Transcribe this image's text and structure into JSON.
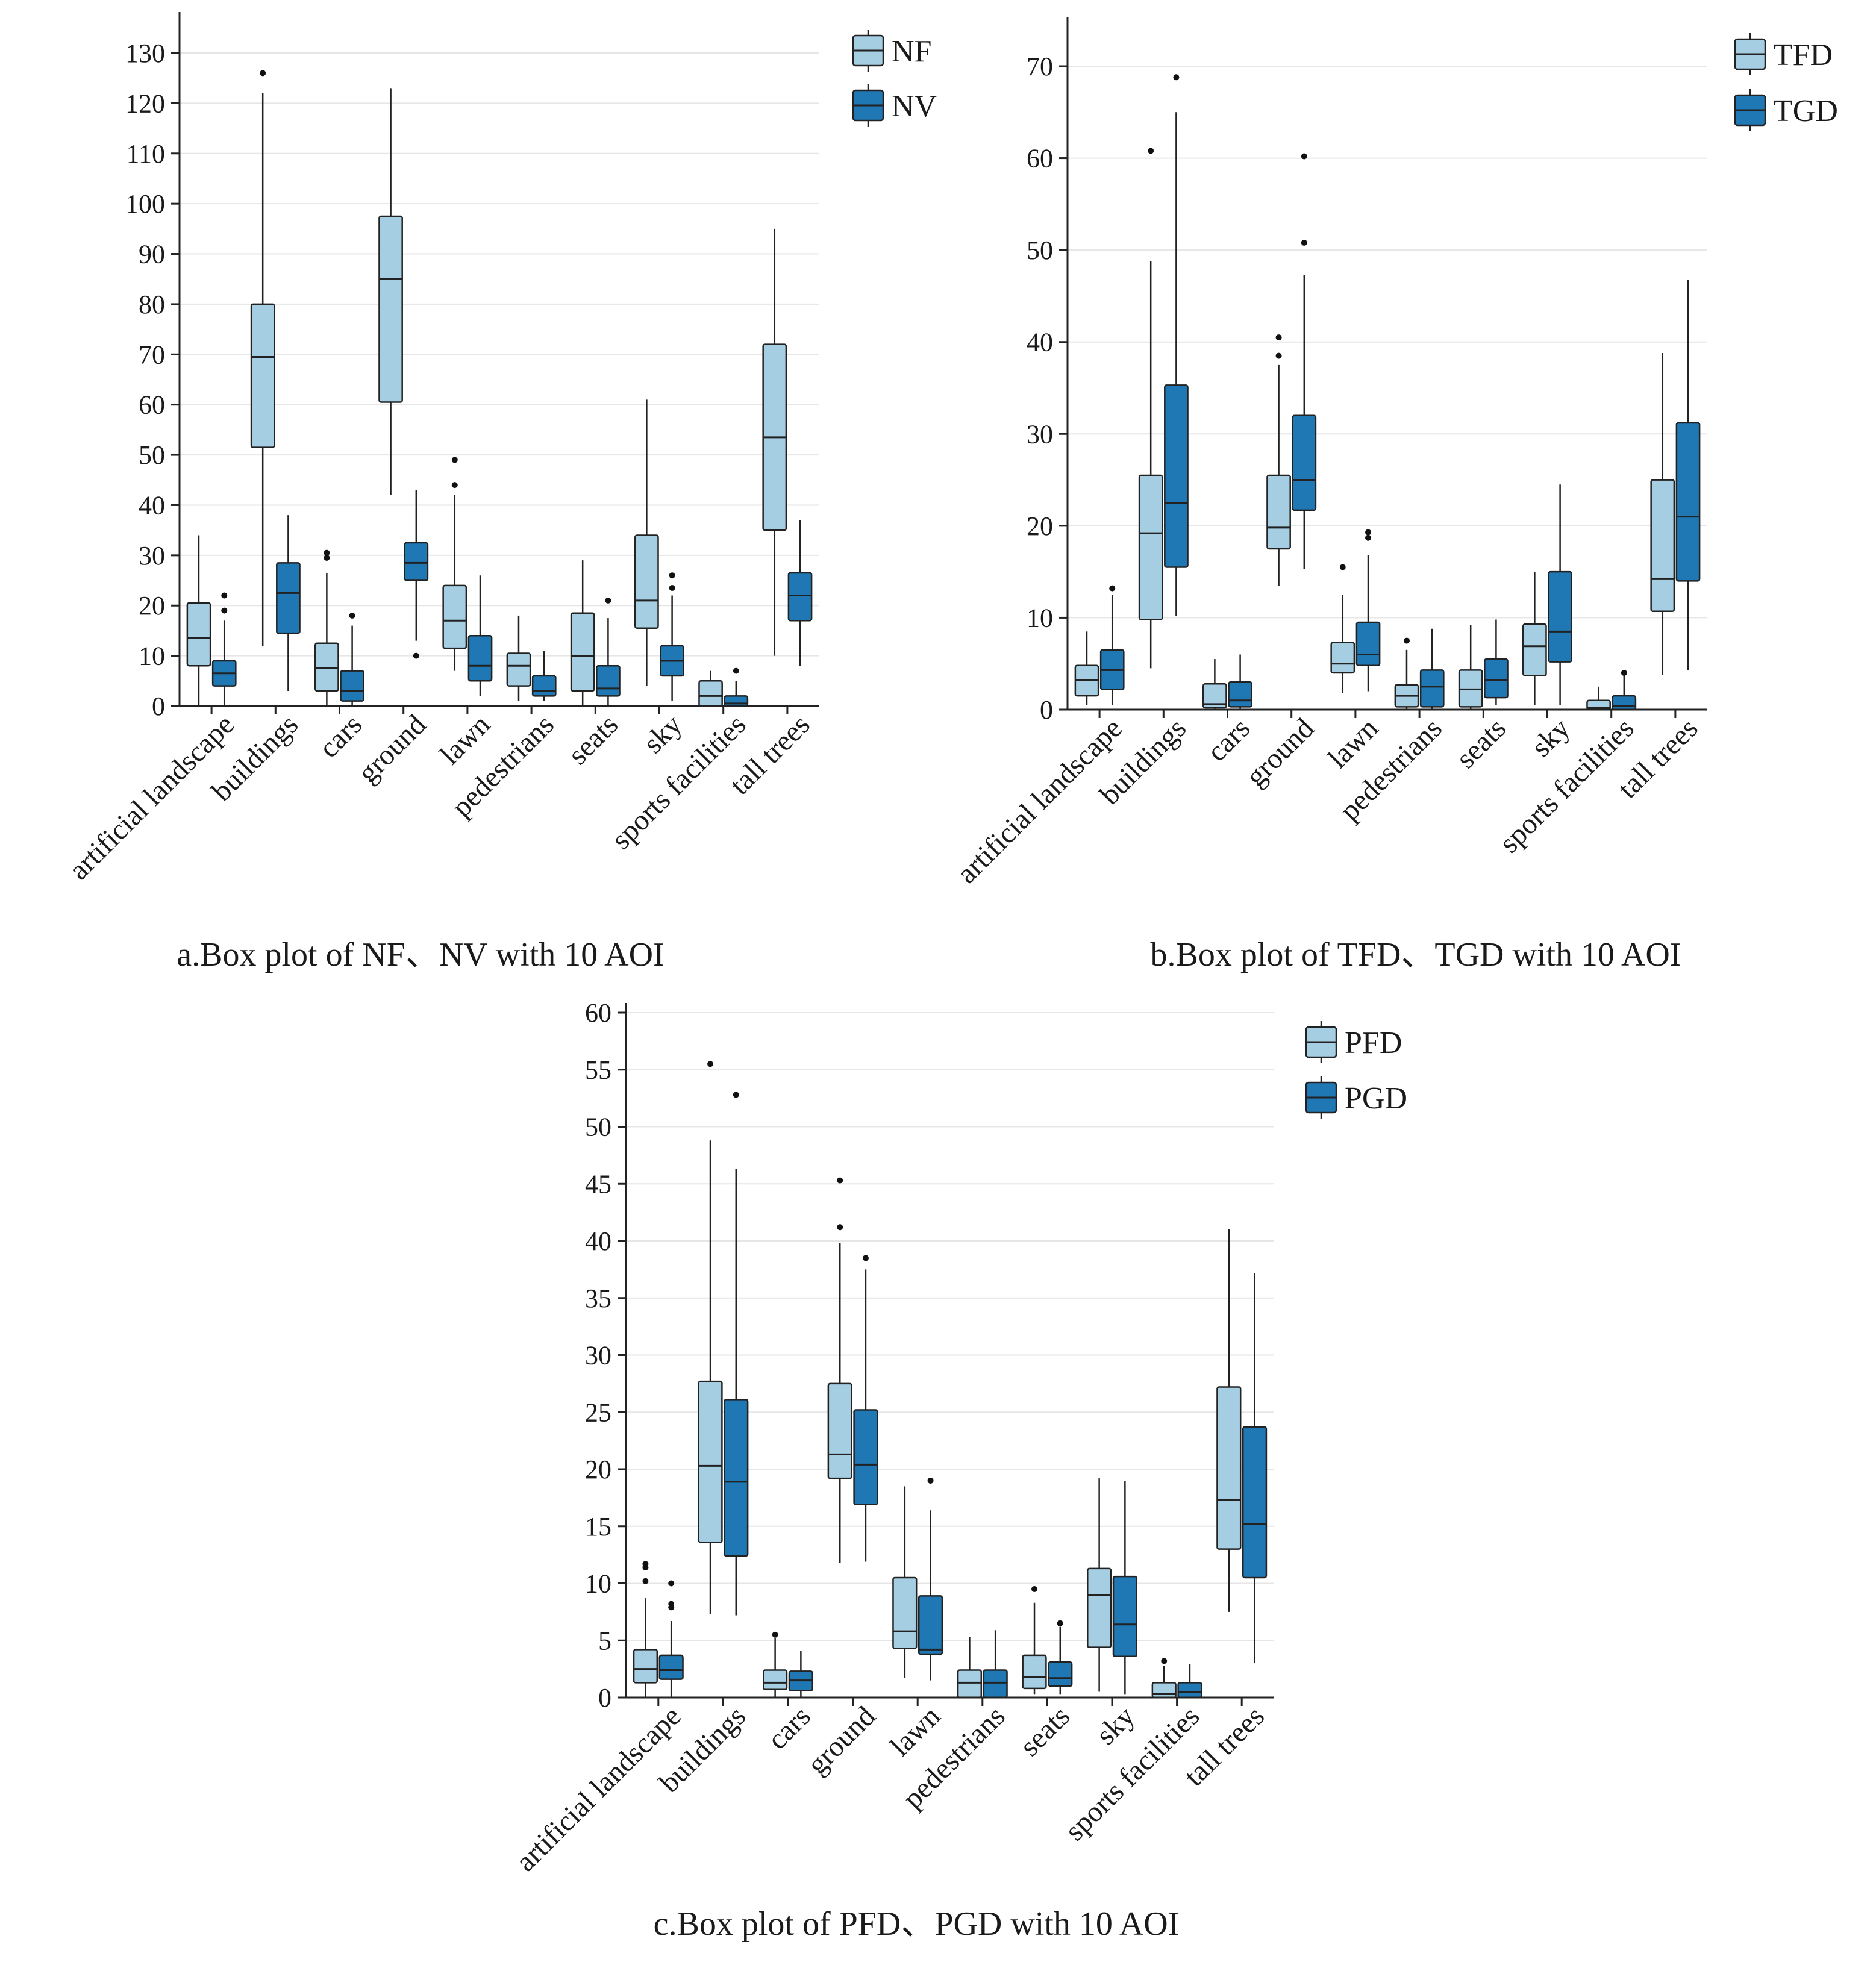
{
  "chart_data": [
    {
      "type": "box",
      "caption": "a.Box plot of NF、NV with 10 AOI",
      "categories": [
        "artificial landscape",
        "buildings",
        "cars",
        "ground",
        "lawn",
        "pedestrians",
        "seats",
        "sky",
        "sports facilities",
        "tall trees"
      ],
      "ylim": [
        0,
        140
      ],
      "yticks": [
        0,
        10,
        20,
        30,
        40,
        50,
        60,
        70,
        80,
        90,
        100,
        110,
        120,
        130
      ],
      "grid": true,
      "legend_position": "top-right",
      "series": [
        {
          "name": "NF",
          "color": "#a6cee3",
          "boxes": [
            {
              "whisker_low": 0,
              "q1": 8,
              "median": 13.5,
              "q3": 20.5,
              "whisker_high": 34,
              "outliers": []
            },
            {
              "whisker_low": 12,
              "q1": 51.5,
              "median": 69.5,
              "q3": 80,
              "whisker_high": 122,
              "outliers": [
                126
              ]
            },
            {
              "whisker_low": 0,
              "q1": 3,
              "median": 7.5,
              "q3": 12.5,
              "whisker_high": 26.5,
              "outliers": [
                29.5,
                30.5
              ]
            },
            {
              "whisker_low": 42,
              "q1": 60.5,
              "median": 85,
              "q3": 97.5,
              "whisker_high": 123,
              "outliers": []
            },
            {
              "whisker_low": 7,
              "q1": 11.5,
              "median": 17,
              "q3": 24,
              "whisker_high": 42,
              "outliers": [
                44,
                49
              ]
            },
            {
              "whisker_low": 1,
              "q1": 4,
              "median": 8,
              "q3": 10.5,
              "whisker_high": 18,
              "outliers": []
            },
            {
              "whisker_low": 0,
              "q1": 3,
              "median": 10,
              "q3": 18.5,
              "whisker_high": 29,
              "outliers": []
            },
            {
              "whisker_low": 4,
              "q1": 15.5,
              "median": 21,
              "q3": 34,
              "whisker_high": 61,
              "outliers": []
            },
            {
              "whisker_low": 0,
              "q1": 0,
              "median": 2,
              "q3": 5,
              "whisker_high": 7,
              "outliers": []
            },
            {
              "whisker_low": 10,
              "q1": 35,
              "median": 53.5,
              "q3": 72,
              "whisker_high": 95,
              "outliers": []
            }
          ]
        },
        {
          "name": "NV",
          "color": "#1f78b4",
          "boxes": [
            {
              "whisker_low": 0,
              "q1": 4,
              "median": 6.5,
              "q3": 9,
              "whisker_high": 17,
              "outliers": [
                19,
                22
              ]
            },
            {
              "whisker_low": 3,
              "q1": 14.5,
              "median": 22.5,
              "q3": 28.5,
              "whisker_high": 38,
              "outliers": []
            },
            {
              "whisker_low": 0,
              "q1": 1,
              "median": 3,
              "q3": 7,
              "whisker_high": 16,
              "outliers": [
                18
              ]
            },
            {
              "whisker_low": 13,
              "q1": 25,
              "median": 28.5,
              "q3": 32.5,
              "whisker_high": 43,
              "outliers": [
                10
              ]
            },
            {
              "whisker_low": 2,
              "q1": 5,
              "median": 8,
              "q3": 14,
              "whisker_high": 26,
              "outliers": []
            },
            {
              "whisker_low": 1,
              "q1": 2,
              "median": 3,
              "q3": 6,
              "whisker_high": 11,
              "outliers": []
            },
            {
              "whisker_low": 0,
              "q1": 2,
              "median": 3.5,
              "q3": 8,
              "whisker_high": 17.5,
              "outliers": [
                21
              ]
            },
            {
              "whisker_low": 1,
              "q1": 6,
              "median": 9,
              "q3": 12,
              "whisker_high": 22,
              "outliers": [
                23.5,
                26
              ]
            },
            {
              "whisker_low": 0,
              "q1": 0,
              "median": 0.5,
              "q3": 2,
              "whisker_high": 5,
              "outliers": [
                7
              ]
            },
            {
              "whisker_low": 8,
              "q1": 17,
              "median": 22,
              "q3": 26.5,
              "whisker_high": 37,
              "outliers": []
            }
          ]
        }
      ]
    },
    {
      "type": "box",
      "caption": "b.Box plot of TFD、TGD with 10 AOI",
      "categories": [
        "artificial landscape",
        "buildings",
        "cars",
        "ground",
        "lawn",
        "pedestrians",
        "seats",
        "sky",
        "sports facilities",
        "tall trees"
      ],
      "ylim": [
        0,
        75
      ],
      "yticks": [
        0,
        10,
        20,
        30,
        40,
        50,
        60,
        70
      ],
      "grid": true,
      "legend_position": "top-right",
      "series": [
        {
          "name": "TFD",
          "color": "#a6cee3",
          "boxes": [
            {
              "whisker_low": 0.5,
              "q1": 1.5,
              "median": 3.2,
              "q3": 4.8,
              "whisker_high": 8.5,
              "outliers": []
            },
            {
              "whisker_low": 4.5,
              "q1": 9.8,
              "median": 19.2,
              "q3": 25.5,
              "whisker_high": 48.8,
              "outliers": [
                60.8
              ]
            },
            {
              "whisker_low": 0,
              "q1": 0.2,
              "median": 0.6,
              "q3": 2.8,
              "whisker_high": 5.5,
              "outliers": []
            },
            {
              "whisker_low": 13.5,
              "q1": 17.5,
              "median": 19.8,
              "q3": 25.5,
              "whisker_high": 37.5,
              "outliers": [
                38.5,
                40.5
              ]
            },
            {
              "whisker_low": 1.8,
              "q1": 4,
              "median": 5,
              "q3": 7.3,
              "whisker_high": 12.5,
              "outliers": [
                15.5
              ]
            },
            {
              "whisker_low": 0,
              "q1": 0.3,
              "median": 1.5,
              "q3": 2.7,
              "whisker_high": 6.5,
              "outliers": [
                7.5
              ]
            },
            {
              "whisker_low": 0,
              "q1": 0.3,
              "median": 2.2,
              "q3": 4.3,
              "whisker_high": 9.2,
              "outliers": []
            },
            {
              "whisker_low": 0.5,
              "q1": 3.7,
              "median": 6.9,
              "q3": 9.3,
              "whisker_high": 15,
              "outliers": []
            },
            {
              "whisker_low": 0,
              "q1": 0,
              "median": 0.2,
              "q3": 1,
              "whisker_high": 2.5,
              "outliers": []
            },
            {
              "whisker_low": 3.8,
              "q1": 10.7,
              "median": 14.2,
              "q3": 25,
              "whisker_high": 38.8,
              "outliers": []
            }
          ]
        },
        {
          "name": "TGD",
          "color": "#1f78b4",
          "boxes": [
            {
              "whisker_low": 0.5,
              "q1": 2.2,
              "median": 4.3,
              "q3": 6.5,
              "whisker_high": 12.5,
              "outliers": [
                13.2
              ]
            },
            {
              "whisker_low": 10.2,
              "q1": 15.5,
              "median": 22.5,
              "q3": 35.3,
              "whisker_high": 65,
              "outliers": [
                68.8
              ]
            },
            {
              "whisker_low": 0,
              "q1": 0.3,
              "median": 1,
              "q3": 3,
              "whisker_high": 6,
              "outliers": []
            },
            {
              "whisker_low": 15.3,
              "q1": 21.7,
              "median": 25,
              "q3": 32,
              "whisker_high": 47.3,
              "outliers": [
                50.8,
                60.2
              ]
            },
            {
              "whisker_low": 2,
              "q1": 4.8,
              "median": 6,
              "q3": 9.5,
              "whisker_high": 16.8,
              "outliers": [
                18.7,
                19.3
              ]
            },
            {
              "whisker_low": 0,
              "q1": 0.3,
              "median": 2.5,
              "q3": 4.3,
              "whisker_high": 8.8,
              "outliers": []
            },
            {
              "whisker_low": 0.5,
              "q1": 1.3,
              "median": 3.2,
              "q3": 5.5,
              "whisker_high": 9.8,
              "outliers": []
            },
            {
              "whisker_low": 0.5,
              "q1": 5.2,
              "median": 8.5,
              "q3": 15,
              "whisker_high": 24.5,
              "outliers": []
            },
            {
              "whisker_low": 0,
              "q1": 0,
              "median": 0.4,
              "q3": 1.5,
              "whisker_high": 3.8,
              "outliers": [
                4
              ]
            },
            {
              "whisker_low": 4.3,
              "q1": 14,
              "median": 21,
              "q3": 31.2,
              "whisker_high": 46.8,
              "outliers": []
            }
          ]
        }
      ]
    },
    {
      "type": "box",
      "caption": "c.Box plot of PFD、PGD with 10 AOI",
      "categories": [
        "artificial landscape",
        "buildings",
        "cars",
        "ground",
        "lawn",
        "pedestrians",
        "seats",
        "sky",
        "sports facilities",
        "tall trees"
      ],
      "ylim": [
        0,
        60
      ],
      "yticks": [
        0,
        5,
        10,
        15,
        20,
        25,
        30,
        35,
        40,
        45,
        50,
        55,
        60
      ],
      "grid": true,
      "legend_position": "top-right",
      "series": [
        {
          "name": "PFD",
          "color": "#a6cee3",
          "boxes": [
            {
              "whisker_low": 0,
              "q1": 1.3,
              "median": 2.5,
              "q3": 4.2,
              "whisker_high": 8.7,
              "outliers": [
                10.2,
                11.4,
                11.7
              ]
            },
            {
              "whisker_low": 7.3,
              "q1": 13.6,
              "median": 20.3,
              "q3": 27.7,
              "whisker_high": 48.8,
              "outliers": [
                55.5
              ]
            },
            {
              "whisker_low": 0,
              "q1": 0.7,
              "median": 1.3,
              "q3": 2.4,
              "whisker_high": 5.2,
              "outliers": [
                5.5
              ]
            },
            {
              "whisker_low": 11.8,
              "q1": 19.2,
              "median": 21.3,
              "q3": 27.5,
              "whisker_high": 39.8,
              "outliers": [
                41.2,
                45.3
              ]
            },
            {
              "whisker_low": 1.7,
              "q1": 4.3,
              "median": 5.8,
              "q3": 10.5,
              "whisker_high": 18.5,
              "outliers": []
            },
            {
              "whisker_low": 0,
              "q1": 0,
              "median": 1.3,
              "q3": 2.4,
              "whisker_high": 5.3,
              "outliers": []
            },
            {
              "whisker_low": 0.3,
              "q1": 0.8,
              "median": 1.8,
              "q3": 3.7,
              "whisker_high": 8.3,
              "outliers": [
                9.5
              ]
            },
            {
              "whisker_low": 0.5,
              "q1": 4.4,
              "median": 9,
              "q3": 11.3,
              "whisker_high": 19.2,
              "outliers": []
            },
            {
              "whisker_low": 0,
              "q1": 0,
              "median": 0.3,
              "q3": 1.3,
              "whisker_high": 2.8,
              "outliers": [
                3.2
              ]
            },
            {
              "whisker_low": 7.5,
              "q1": 13,
              "median": 17.3,
              "q3": 27.2,
              "whisker_high": 41,
              "outliers": []
            }
          ]
        },
        {
          "name": "PGD",
          "color": "#1f78b4",
          "boxes": [
            {
              "whisker_low": 0,
              "q1": 1.6,
              "median": 2.4,
              "q3": 3.7,
              "whisker_high": 6.7,
              "outliers": [
                7.9,
                8.2,
                10
              ]
            },
            {
              "whisker_low": 7.2,
              "q1": 12.4,
              "median": 18.9,
              "q3": 26.1,
              "whisker_high": 46.3,
              "outliers": [
                52.8
              ]
            },
            {
              "whisker_low": 0,
              "q1": 0.6,
              "median": 1.5,
              "q3": 2.3,
              "whisker_high": 4.1,
              "outliers": []
            },
            {
              "whisker_low": 11.9,
              "q1": 16.9,
              "median": 20.4,
              "q3": 25.2,
              "whisker_high": 37.5,
              "outliers": [
                38.5
              ]
            },
            {
              "whisker_low": 1.5,
              "q1": 3.8,
              "median": 4.2,
              "q3": 8.9,
              "whisker_high": 16.4,
              "outliers": [
                19
              ]
            },
            {
              "whisker_low": 0,
              "q1": 0,
              "median": 1.3,
              "q3": 2.4,
              "whisker_high": 5.9,
              "outliers": []
            },
            {
              "whisker_low": 0.3,
              "q1": 1,
              "median": 1.7,
              "q3": 3.1,
              "whisker_high": 6.2,
              "outliers": [
                6.5
              ]
            },
            {
              "whisker_low": 0.3,
              "q1": 3.6,
              "median": 6.4,
              "q3": 10.6,
              "whisker_high": 19,
              "outliers": []
            },
            {
              "whisker_low": 0,
              "q1": 0,
              "median": 0.5,
              "q3": 1.3,
              "whisker_high": 2.9,
              "outliers": []
            },
            {
              "whisker_low": 3,
              "q1": 10.5,
              "median": 15.2,
              "q3": 23.7,
              "whisker_high": 37.2,
              "outliers": []
            }
          ]
        }
      ]
    }
  ]
}
